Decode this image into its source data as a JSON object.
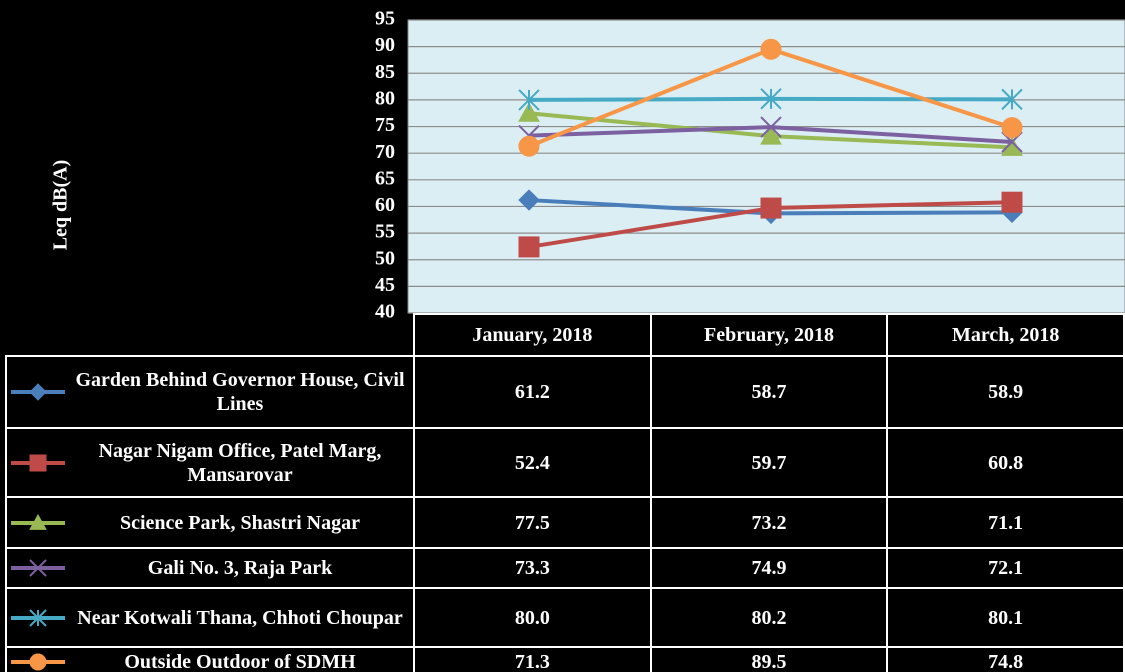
{
  "chart_data": {
    "type": "line",
    "y_label": "Leq dB(A)",
    "categories": [
      "January, 2018",
      "February, 2018",
      "March, 2018"
    ],
    "ylim": [
      40,
      95
    ],
    "yticks": [
      40,
      45,
      50,
      55,
      60,
      65,
      70,
      75,
      80,
      85,
      90,
      95
    ],
    "grid": true,
    "series": [
      {
        "name": "Garden Behind Governor House, Civil Lines",
        "color": "#4a7ebb",
        "marker": "diamond",
        "values": [
          61.2,
          58.7,
          58.9
        ],
        "value_labels": [
          "61.2",
          "58.7",
          "58.9"
        ]
      },
      {
        "name": "Nagar Nigam Office, Patel Marg, Mansarovar",
        "color": "#be4b48",
        "marker": "square",
        "values": [
          52.4,
          59.7,
          60.8
        ],
        "value_labels": [
          "52.4",
          "59.7",
          "60.8"
        ]
      },
      {
        "name": "Science Park, Shastri Nagar",
        "color": "#98b954",
        "marker": "triangle",
        "values": [
          77.5,
          73.2,
          71.1
        ],
        "value_labels": [
          "77.5",
          "73.2",
          "71.1"
        ]
      },
      {
        "name": "Gali No. 3, Raja Park",
        "color": "#7d60a0",
        "marker": "x",
        "values": [
          73.3,
          74.9,
          72.1
        ],
        "value_labels": [
          "73.3",
          "74.9",
          "72.1"
        ]
      },
      {
        "name": "Near Kotwali Thana, Chhoti Choupar",
        "color": "#46aac5",
        "marker": "star",
        "values": [
          80,
          80.2,
          80.1
        ],
        "value_labels": [
          "80.0",
          "80.2",
          "80.1"
        ]
      },
      {
        "name": "Outside Outdoor of SDMH",
        "color": "#f79646",
        "marker": "circle",
        "values": [
          71.3,
          89.5,
          74.8
        ],
        "value_labels": [
          "71.3",
          "89.5",
          "74.8"
        ]
      }
    ]
  }
}
